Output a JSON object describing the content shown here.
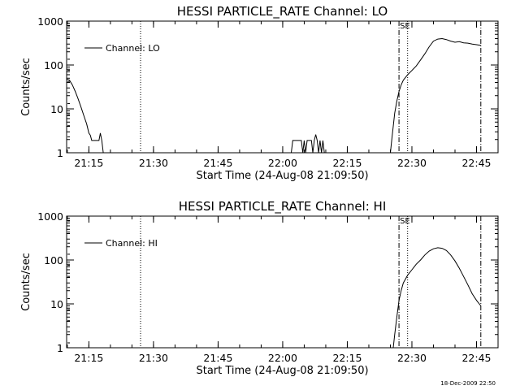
{
  "footer_timestamp": "18-Dec-2009 22:50",
  "chart_data": [
    {
      "type": "line",
      "title": "HESSI PARTICLE_RATE Channel: LO",
      "xlabel": "Start Time (24-Aug-08 21:09:50)",
      "ylabel": "Counts/sec",
      "yscale": "log",
      "ylim": [
        1,
        1000
      ],
      "xlim": [
        "21:09:50",
        "22:50:00"
      ],
      "x_tick_labels": [
        "21:15",
        "21:30",
        "21:45",
        "22:00",
        "22:15",
        "22:30",
        "22:45"
      ],
      "y_tick_labels": [
        "1",
        "10",
        "100",
        "1000"
      ],
      "legend": {
        "label": "Channel: LO",
        "placement": "top-left"
      },
      "marker_label": "SE",
      "vlines": [
        {
          "time": "21:27",
          "style": "dotted"
        },
        {
          "time": "22:27",
          "style": "dash-dot"
        },
        {
          "time": "22:29",
          "style": "dotted"
        },
        {
          "time": "22:46",
          "style": "dash-dot"
        }
      ],
      "series": [
        {
          "name": "Channel: LO",
          "segments": [
            [
              [
                "21:09:50",
                48
              ],
              [
                "21:10:30",
                45
              ],
              [
                "21:11:10",
                35
              ],
              [
                "21:11:50",
                25
              ],
              [
                "21:12:30",
                17
              ],
              [
                "21:13:10",
                11
              ],
              [
                "21:13:50",
                7
              ],
              [
                "21:14:30",
                4.5
              ],
              [
                "21:15:00",
                2.8
              ],
              [
                "21:15:20",
                2.5
              ],
              [
                "21:15:40",
                1.9
              ],
              [
                "21:17:20",
                1.9
              ],
              [
                "21:17:40",
                2.8
              ],
              [
                "21:18:00",
                1.9
              ],
              [
                "21:18:20",
                1.0
              ]
            ],
            [
              [
                "22:02:00",
                1.0
              ],
              [
                "22:02:20",
                1.9
              ],
              [
                "22:04:20",
                1.9
              ],
              [
                "22:04:40",
                1.0
              ],
              [
                "22:05:00",
                1.9
              ],
              [
                "22:05:20",
                1.0
              ],
              [
                "22:05:40",
                1.9
              ],
              [
                "22:06:40",
                1.9
              ],
              [
                "22:07:00",
                1.0
              ],
              [
                "22:07:20",
                1.9
              ],
              [
                "22:07:40",
                2.6
              ],
              [
                "22:08:00",
                1.9
              ],
              [
                "22:08:20",
                1.0
              ],
              [
                "22:08:40",
                1.9
              ],
              [
                "22:09:00",
                1.0
              ],
              [
                "22:09:20",
                1.9
              ],
              [
                "22:09:40",
                1.0
              ]
            ],
            [
              [
                "22:25:00",
                1.0
              ],
              [
                "22:25:20",
                2
              ],
              [
                "22:25:40",
                4
              ],
              [
                "22:26:00",
                8
              ],
              [
                "22:26:30",
                15
              ],
              [
                "22:27:00",
                25
              ],
              [
                "22:27:30",
                35
              ],
              [
                "22:28:00",
                45
              ],
              [
                "22:29:00",
                60
              ],
              [
                "22:30:00",
                75
              ],
              [
                "22:31:00",
                95
              ],
              [
                "22:32:00",
                130
              ],
              [
                "22:33:00",
                180
              ],
              [
                "22:34:00",
                260
              ],
              [
                "22:35:00",
                350
              ],
              [
                "22:36:00",
                390
              ],
              [
                "22:37:00",
                400
              ],
              [
                "22:38:00",
                380
              ],
              [
                "22:39:00",
                350
              ],
              [
                "22:40:00",
                330
              ],
              [
                "22:41:00",
                340
              ],
              [
                "22:42:00",
                320
              ],
              [
                "22:43:00",
                315
              ],
              [
                "22:44:00",
                300
              ],
              [
                "22:45:00",
                290
              ],
              [
                "22:46:00",
                280
              ]
            ]
          ]
        }
      ]
    },
    {
      "type": "line",
      "title": "HESSI PARTICLE_RATE Channel: HI",
      "xlabel": "Start Time (24-Aug-08 21:09:50)",
      "ylabel": "Counts/sec",
      "yscale": "log",
      "ylim": [
        1,
        1000
      ],
      "xlim": [
        "21:09:50",
        "22:50:00"
      ],
      "x_tick_labels": [
        "21:15",
        "21:30",
        "21:45",
        "22:00",
        "22:15",
        "22:30",
        "22:45"
      ],
      "y_tick_labels": [
        "1",
        "10",
        "100",
        "1000"
      ],
      "legend": {
        "label": "Channel: HI",
        "placement": "top-left"
      },
      "marker_label": "SE",
      "vlines": [
        {
          "time": "21:27",
          "style": "dotted"
        },
        {
          "time": "22:27",
          "style": "dash-dot"
        },
        {
          "time": "22:29",
          "style": "dotted"
        },
        {
          "time": "22:46",
          "style": "dash-dot"
        }
      ],
      "series": [
        {
          "name": "Channel: HI",
          "segments": [
            [
              [
                "22:25:40",
                1.0
              ],
              [
                "22:26:00",
                2
              ],
              [
                "22:26:30",
                5
              ],
              [
                "22:27:00",
                12
              ],
              [
                "22:27:30",
                20
              ],
              [
                "22:28:00",
                30
              ],
              [
                "22:29:00",
                45
              ],
              [
                "22:30:00",
                60
              ],
              [
                "22:31:00",
                80
              ],
              [
                "22:32:00",
                100
              ],
              [
                "22:33:00",
                130
              ],
              [
                "22:34:00",
                160
              ],
              [
                "22:35:00",
                180
              ],
              [
                "22:36:00",
                190
              ],
              [
                "22:37:00",
                185
              ],
              [
                "22:38:00",
                165
              ],
              [
                "22:39:00",
                130
              ],
              [
                "22:40:00",
                95
              ],
              [
                "22:41:00",
                65
              ],
              [
                "22:42:00",
                42
              ],
              [
                "22:43:00",
                27
              ],
              [
                "22:44:00",
                17
              ],
              [
                "22:45:00",
                12
              ],
              [
                "22:46:00",
                9
              ]
            ]
          ]
        }
      ]
    }
  ]
}
